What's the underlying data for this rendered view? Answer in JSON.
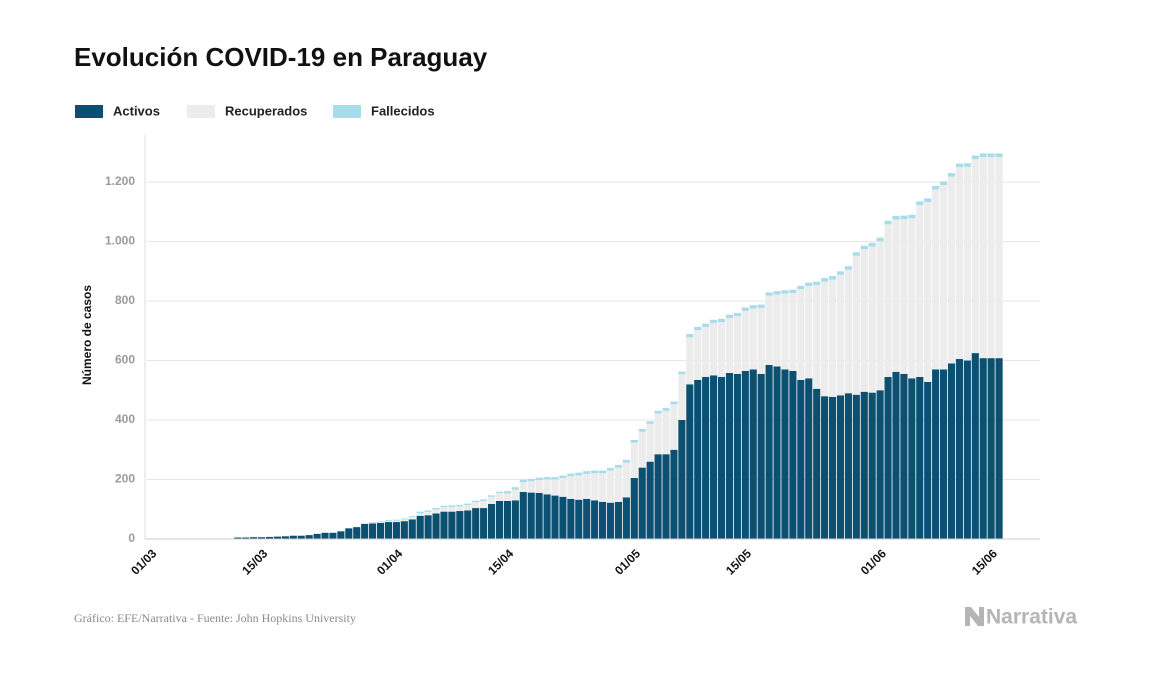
{
  "chart_data": {
    "type": "stacked_bar",
    "title": "Evolución COVID-19 en Paraguay",
    "y_label": "Número de casos",
    "source": "Gráfico: EFE/Narrativa - Fuente: John Hopkins University",
    "brand": "Narrativa",
    "categories": [
      "01/03",
      null,
      null,
      null,
      null,
      null,
      null,
      null,
      null,
      null,
      null,
      null,
      null,
      null,
      "15/03",
      null,
      null,
      null,
      null,
      null,
      null,
      null,
      null,
      null,
      null,
      null,
      null,
      null,
      null,
      null,
      null,
      "01/04",
      null,
      null,
      null,
      null,
      null,
      null,
      null,
      null,
      null,
      null,
      null,
      null,
      null,
      "15/04",
      null,
      null,
      null,
      null,
      null,
      null,
      null,
      null,
      null,
      null,
      null,
      null,
      null,
      null,
      null,
      "01/05",
      null,
      null,
      null,
      null,
      null,
      null,
      null,
      null,
      null,
      null,
      null,
      null,
      null,
      "15/05",
      null,
      null,
      null,
      null,
      null,
      null,
      null,
      null,
      null,
      null,
      null,
      null,
      null,
      null,
      null,
      null,
      "01/06",
      null,
      null,
      null,
      null,
      null,
      null,
      null,
      null,
      null,
      null,
      null,
      null,
      null,
      "15/06",
      null
    ],
    "series": [
      {
        "name": "Activos",
        "color": "#0b4f71",
        "values": [
          0,
          0,
          0,
          0,
          0,
          0,
          0,
          0,
          0,
          1,
          1,
          5,
          5,
          6,
          6,
          7,
          8,
          9,
          11,
          11,
          13,
          17,
          21,
          21,
          26,
          36,
          40,
          51,
          52,
          54,
          57,
          57,
          60,
          66,
          78,
          80,
          86,
          92,
          92,
          94,
          96,
          104,
          104,
          118,
          128,
          128,
          130,
          158,
          156,
          155,
          150,
          146,
          142,
          135,
          132,
          135,
          130,
          125,
          122,
          125,
          140,
          205,
          240,
          260,
          285,
          285,
          300,
          400,
          520,
          535,
          545,
          550,
          545,
          558,
          555,
          565,
          570,
          555,
          585,
          580,
          570,
          565,
          535,
          540,
          505,
          480,
          478,
          483,
          490,
          485,
          495,
          492,
          500,
          545,
          562,
          555,
          540,
          545,
          528,
          570,
          570,
          590,
          605,
          600,
          625,
          608,
          608,
          608
        ]
      },
      {
        "name": "Recuperados",
        "color": "#ececec",
        "values": [
          0,
          0,
          0,
          0,
          0,
          0,
          0,
          0,
          0,
          0,
          0,
          0,
          0,
          0,
          0,
          0,
          0,
          0,
          0,
          0,
          0,
          0,
          0,
          0,
          0,
          0,
          0,
          0,
          1,
          2,
          4,
          5,
          6,
          8,
          9,
          11,
          13,
          15,
          16,
          16,
          18,
          20,
          24,
          24,
          26,
          25,
          36,
          33,
          38,
          43,
          50,
          54,
          63,
          76,
          82,
          84,
          91,
          96,
          108,
          115,
          117,
          119,
          121,
          127,
          137,
          146,
          153,
          154,
          158,
          167,
          168,
          176,
          184,
          185,
          194,
          202,
          205,
          222,
          233,
          242,
          255,
          262,
          305,
          311,
          349,
          385,
          394,
          405,
          415,
          467,
          479,
          491,
          501,
          513,
          512,
          520,
          538,
          578,
          605,
          605,
          620,
          628,
          645,
          651,
          652,
          676,
          676,
          676
        ]
      },
      {
        "name": "Fallecidos",
        "color": "#a8dcea",
        "values": [
          0,
          0,
          0,
          0,
          0,
          0,
          0,
          0,
          0,
          0,
          0,
          0,
          0,
          0,
          0,
          0,
          0,
          0,
          0,
          0,
          0,
          1,
          1,
          1,
          1,
          1,
          1,
          1,
          3,
          3,
          3,
          3,
          3,
          3,
          5,
          5,
          5,
          5,
          5,
          5,
          5,
          5,
          5,
          5,
          5,
          8,
          8,
          8,
          8,
          8,
          8,
          8,
          8,
          9,
          9,
          9,
          9,
          9,
          9,
          9,
          9,
          9,
          9,
          9,
          9,
          9,
          9,
          9,
          11,
          11,
          11,
          11,
          11,
          11,
          11,
          11,
          11,
          11,
          11,
          11,
          11,
          11,
          11,
          11,
          11,
          12,
          12,
          12,
          12,
          12,
          12,
          12,
          12,
          12,
          12,
          12,
          12,
          12,
          12,
          12,
          12,
          12,
          12,
          12,
          12,
          12,
          12,
          12
        ]
      }
    ],
    "ylim": [
      0,
      1350
    ],
    "yticks": [
      0,
      200,
      400,
      600,
      800,
      {
        "value": 1000,
        "label": "1.000"
      },
      {
        "value": 1200,
        "label": "1.200"
      }
    ],
    "grid": true
  }
}
